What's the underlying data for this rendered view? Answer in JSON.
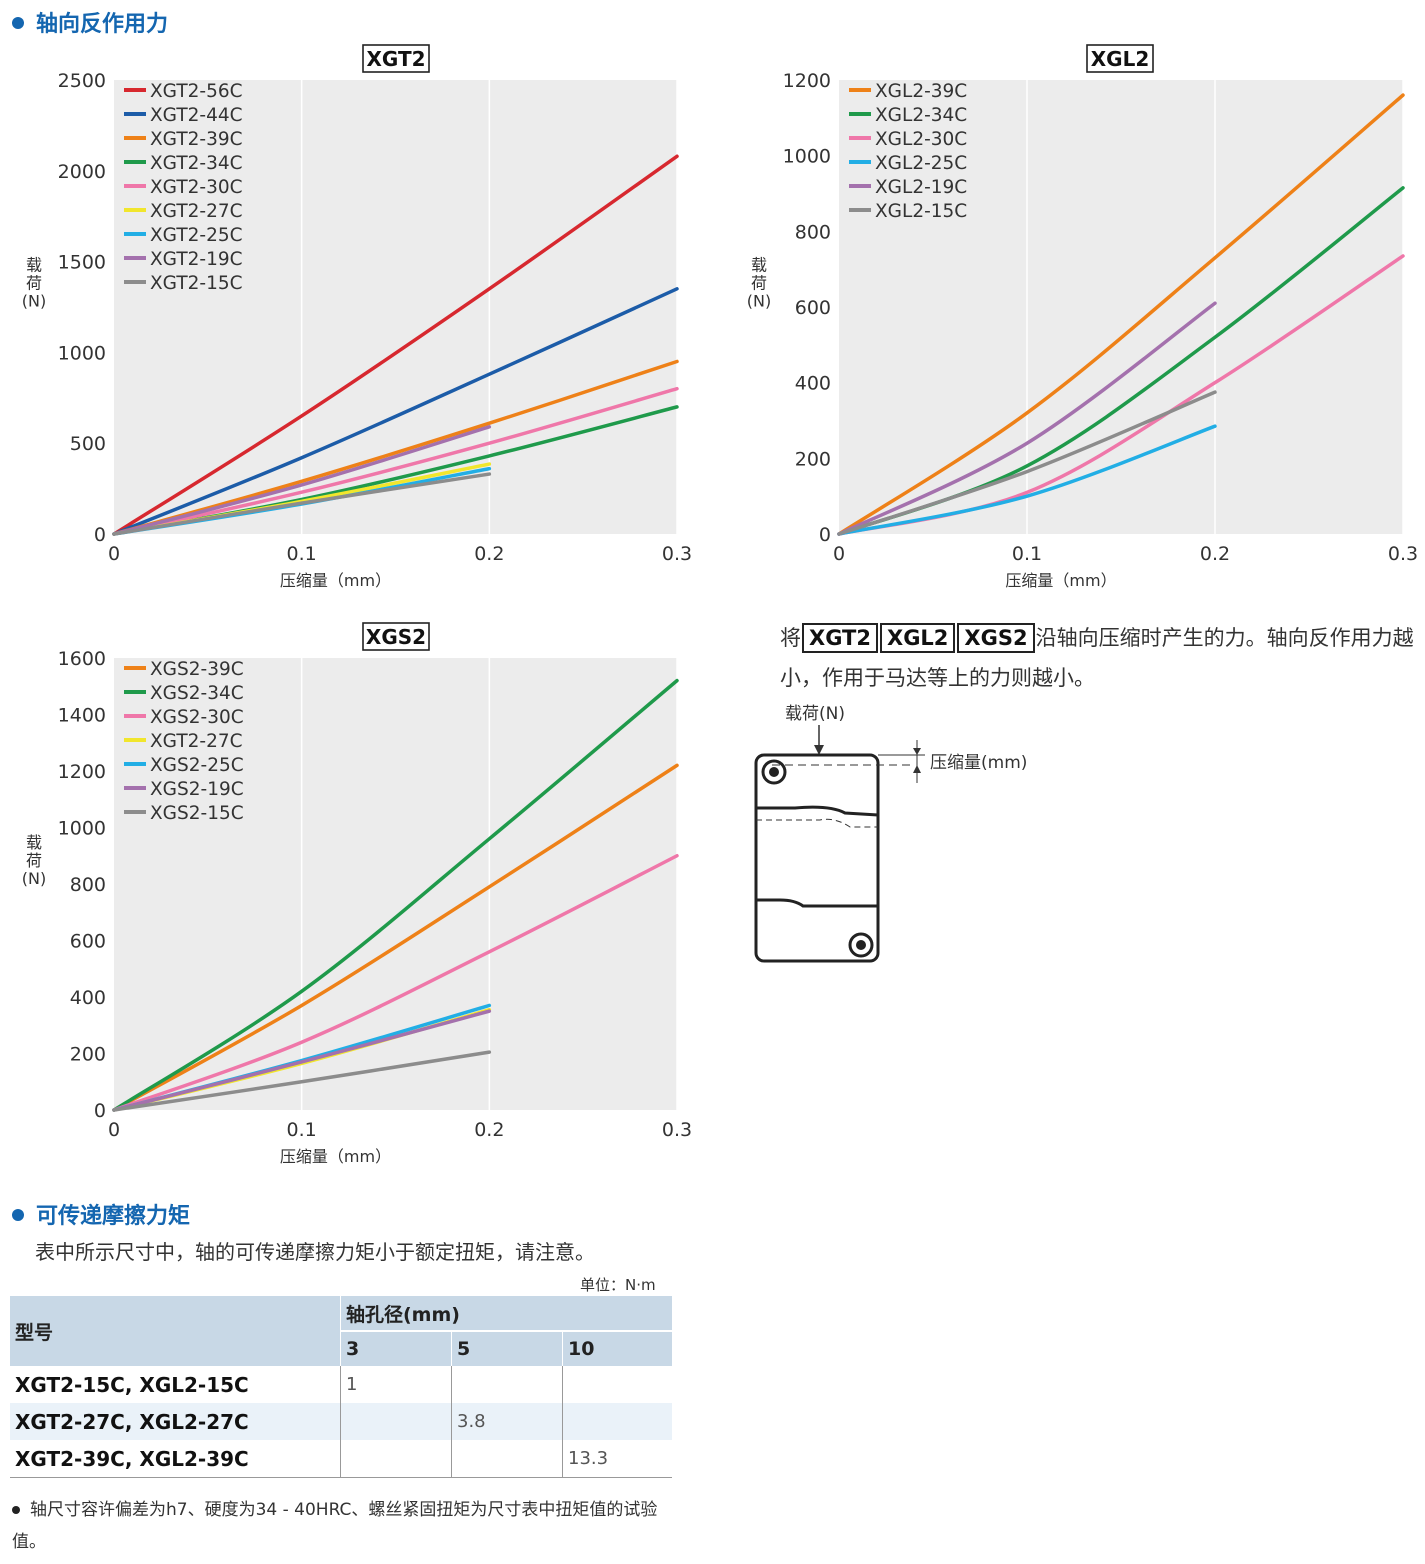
{
  "sections": {
    "axial_title": "轴向反作用力",
    "friction_title": "可传递摩擦力矩",
    "friction_note": "表中所示尺寸中，轴的可传递摩擦力矩小于额定扭矩，请注意。"
  },
  "description": {
    "prefix": "将",
    "series": [
      "XGT2",
      "XGL2",
      "XGS2"
    ],
    "suffix": "沿轴向压缩时产生的力。轴向反作用力越小，作用于马达等上的力则越小。"
  },
  "diagram": {
    "load_label": "载荷(N)",
    "comp_label": "压缩量(mm)"
  },
  "table": {
    "unit": "单位：N·m",
    "model_header": "型号",
    "bore_header": "轴孔径(mm)",
    "bores": [
      "3",
      "5",
      "10"
    ],
    "rows": [
      {
        "model": "XGT2-15C, XGL2-15C",
        "values": [
          "1",
          "",
          ""
        ]
      },
      {
        "model": "XGT2-27C, XGL2-27C",
        "values": [
          "",
          "3.8",
          ""
        ]
      },
      {
        "model": "XGT2-39C, XGL2-39C",
        "values": [
          "",
          "",
          "13.3"
        ]
      }
    ]
  },
  "footnote": "轴尺寸容许偏差为h7、硬度为34 - 40HRC、螺丝紧固扭矩为尺寸表中扭矩值的试验值。",
  "chart_data": [
    {
      "type": "line",
      "title": "XGT2",
      "xlabel": "压缩量（mm）",
      "ylabel": "载荷(N)",
      "xlim": [
        0,
        0.3
      ],
      "ylim": [
        0,
        2500
      ],
      "xticks": [
        "0",
        "0.1",
        "0.2",
        "0.3"
      ],
      "yticks": [
        "0",
        "500",
        "1000",
        "1500",
        "2000",
        "2500"
      ],
      "legend_position": "top-left",
      "series": [
        {
          "name": "XGT2-56C",
          "color": "#d7282f",
          "x": [
            0,
            0.1,
            0.2,
            0.3
          ],
          "values": [
            0,
            650,
            1350,
            2080
          ]
        },
        {
          "name": "XGT2-44C",
          "color": "#1c5ca8",
          "x": [
            0,
            0.1,
            0.2,
            0.3
          ],
          "values": [
            0,
            420,
            880,
            1350
          ]
        },
        {
          "name": "XGT2-39C",
          "color": "#ee8118",
          "x": [
            0,
            0.1,
            0.2,
            0.3
          ],
          "values": [
            0,
            290,
            610,
            950
          ]
        },
        {
          "name": "XGT2-34C",
          "color": "#1f9a4b",
          "x": [
            0,
            0.1,
            0.2,
            0.3
          ],
          "values": [
            0,
            190,
            430,
            700
          ]
        },
        {
          "name": "XGT2-30C",
          "color": "#ef77a9",
          "x": [
            0,
            0.1,
            0.2,
            0.3
          ],
          "values": [
            0,
            230,
            500,
            800
          ]
        },
        {
          "name": "XGT2-27C",
          "color": "#f1e62c",
          "x": [
            0,
            0.1,
            0.2
          ],
          "values": [
            0,
            180,
            385
          ]
        },
        {
          "name": "XGT2-25C",
          "color": "#22aee5",
          "x": [
            0,
            0.1,
            0.2
          ],
          "values": [
            0,
            165,
            360
          ]
        },
        {
          "name": "XGT2-19C",
          "color": "#a471ad",
          "x": [
            0,
            0.1,
            0.2
          ],
          "values": [
            0,
            270,
            590
          ]
        },
        {
          "name": "XGT2-15C",
          "color": "#8c8c8c",
          "x": [
            0,
            0.1,
            0.2
          ],
          "values": [
            0,
            170,
            330
          ]
        }
      ]
    },
    {
      "type": "line",
      "title": "XGL2",
      "xlabel": "压缩量（mm）",
      "ylabel": "载荷(N)",
      "xlim": [
        0,
        0.3
      ],
      "ylim": [
        0,
        1200
      ],
      "xticks": [
        "0",
        "0.1",
        "0.2",
        "0.3"
      ],
      "yticks": [
        "0",
        "200",
        "400",
        "600",
        "800",
        "1000",
        "1200"
      ],
      "legend_position": "top-left",
      "series": [
        {
          "name": "XGL2-39C",
          "color": "#ee8118",
          "x": [
            0,
            0.1,
            0.2,
            0.3
          ],
          "values": [
            0,
            320,
            730,
            1160
          ]
        },
        {
          "name": "XGL2-34C",
          "color": "#1f9a4b",
          "x": [
            0,
            0.1,
            0.2,
            0.3
          ],
          "values": [
            0,
            180,
            520,
            915
          ]
        },
        {
          "name": "XGL2-30C",
          "color": "#ef77a9",
          "x": [
            0,
            0.1,
            0.2,
            0.3
          ],
          "values": [
            0,
            110,
            400,
            735
          ]
        },
        {
          "name": "XGL2-25C",
          "color": "#22aee5",
          "x": [
            0,
            0.1,
            0.2
          ],
          "values": [
            0,
            100,
            285
          ]
        },
        {
          "name": "XGL2-19C",
          "color": "#a471ad",
          "x": [
            0,
            0.1,
            0.2
          ],
          "values": [
            0,
            240,
            610
          ]
        },
        {
          "name": "XGL2-15C",
          "color": "#8c8c8c",
          "x": [
            0,
            0.1,
            0.2
          ],
          "values": [
            0,
            165,
            375
          ]
        }
      ]
    },
    {
      "type": "line",
      "title": "XGS2",
      "xlabel": "压缩量（mm）",
      "ylabel": "载荷(N)",
      "xlim": [
        0,
        0.3
      ],
      "ylim": [
        0,
        1600
      ],
      "xticks": [
        "0",
        "0.1",
        "0.2",
        "0.3"
      ],
      "yticks": [
        "0",
        "200",
        "400",
        "600",
        "800",
        "1000",
        "1200",
        "1400",
        "1600"
      ],
      "legend_position": "top-left",
      "series": [
        {
          "name": "XGS2-39C",
          "color": "#ee8118",
          "x": [
            0,
            0.1,
            0.2,
            0.3
          ],
          "values": [
            0,
            370,
            790,
            1220
          ]
        },
        {
          "name": "XGS2-34C",
          "color": "#1f9a4b",
          "x": [
            0,
            0.1,
            0.2,
            0.3
          ],
          "values": [
            0,
            420,
            960,
            1520
          ]
        },
        {
          "name": "XGS2-30C",
          "color": "#ef77a9",
          "x": [
            0,
            0.1,
            0.2,
            0.3
          ],
          "values": [
            0,
            240,
            560,
            900
          ]
        },
        {
          "name": "XGT2-27C",
          "color": "#f1e62c",
          "x": [
            0,
            0.1,
            0.2
          ],
          "values": [
            0,
            165,
            355
          ]
        },
        {
          "name": "XGS2-25C",
          "color": "#22aee5",
          "x": [
            0,
            0.1,
            0.2
          ],
          "values": [
            0,
            175,
            370
          ]
        },
        {
          "name": "XGS2-19C",
          "color": "#a471ad",
          "x": [
            0,
            0.1,
            0.2
          ],
          "values": [
            0,
            170,
            350
          ]
        },
        {
          "name": "XGS2-15C",
          "color": "#8c8c8c",
          "x": [
            0,
            0.1,
            0.2
          ],
          "values": [
            0,
            100,
            205
          ]
        }
      ]
    }
  ]
}
